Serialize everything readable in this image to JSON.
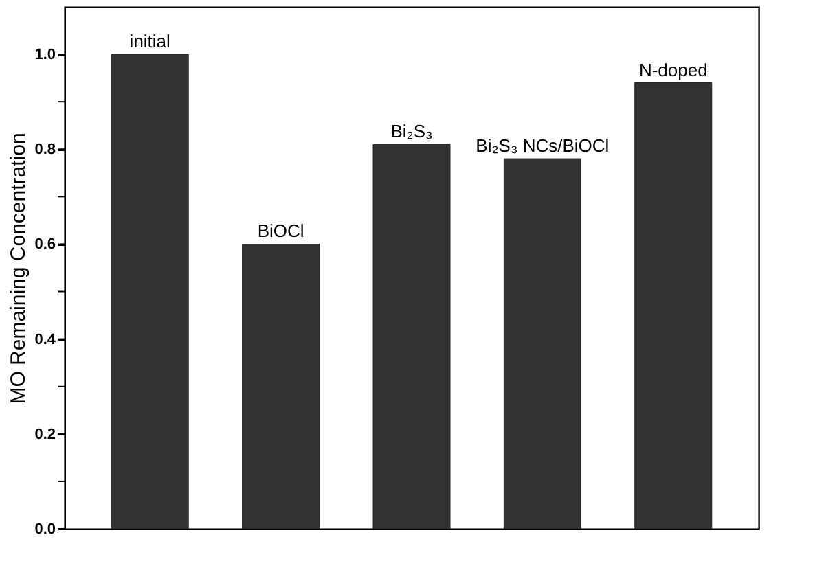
{
  "chart_data": {
    "type": "bar",
    "ylabel": "MO Remaining Concentration",
    "categories": [
      "initial",
      "BiOCl",
      "Bi₂S₃",
      "Bi₂S₃ NCs/BiOCl",
      "N-doped"
    ],
    "values": [
      1.0,
      0.6,
      0.81,
      0.78,
      0.94
    ],
    "color": "#333333",
    "ylim": [
      0,
      1.1
    ],
    "yticks": [
      {
        "value": 0.0,
        "label": "0.0"
      },
      {
        "value": 0.1,
        "label": null
      },
      0.2,
      {
        "value": 0.3,
        "label": null
      },
      0.4,
      {
        "value": 0.5,
        "label": null
      },
      0.6,
      {
        "value": 0.7,
        "label": null
      },
      0.8,
      {
        "value": 0.9,
        "label": null
      },
      {
        "value": 1.0,
        "label": "1.0"
      }
    ],
    "tick_labels": "y",
    "grid": false
  }
}
